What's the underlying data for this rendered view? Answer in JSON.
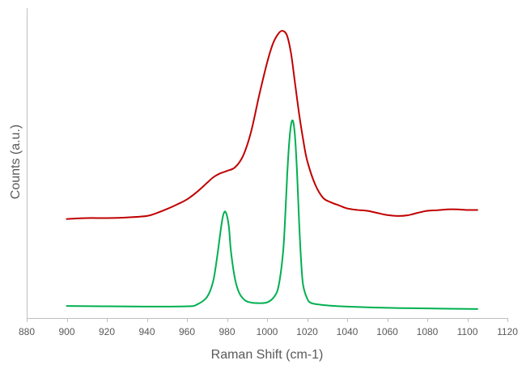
{
  "chart_data": {
    "type": "line",
    "title": "",
    "xlabel": "Raman Shift (cm-1)",
    "ylabel": "Counts (a.u.)",
    "xlim": [
      880,
      1120
    ],
    "ylim": [
      0,
      100
    ],
    "x_ticks": [
      880,
      900,
      920,
      940,
      960,
      980,
      1000,
      1020,
      1040,
      1060,
      1080,
      1100,
      1120
    ],
    "y_ticks_shown": false,
    "grid": false,
    "legend": "none",
    "series": [
      {
        "color": "#c00000",
        "x": [
          900,
          910,
          920,
          930,
          940,
          945,
          950,
          955,
          960,
          965,
          970,
          973,
          976,
          980,
          984,
          988,
          992,
          996,
          1000,
          1003,
          1006,
          1008,
          1010,
          1012,
          1014,
          1016,
          1018,
          1020,
          1024,
          1028,
          1032,
          1036,
          1040,
          1045,
          1050,
          1055,
          1060,
          1065,
          1070,
          1075,
          1080,
          1085,
          1090,
          1095,
          1100,
          1105
        ],
        "y": [
          33.0,
          33.3,
          33.3,
          33.5,
          34.0,
          35.0,
          36.3,
          37.8,
          39.5,
          42.0,
          45.0,
          46.8,
          48.0,
          49.0,
          50.2,
          54.0,
          62.0,
          74.0,
          85.0,
          91.5,
          95.0,
          95.6,
          94.0,
          88.0,
          78.0,
          68.0,
          59.5,
          52.5,
          44.5,
          40.0,
          38.5,
          37.5,
          36.5,
          36.0,
          35.7,
          35.0,
          34.3,
          34.0,
          34.2,
          35.0,
          35.7,
          35.9,
          36.2,
          36.2,
          36.0,
          36.0
        ]
      },
      {
        "color": "#00b050",
        "x": [
          900,
          920,
          940,
          960,
          965,
          970,
          973,
          975,
          977,
          978,
          979,
          980,
          981,
          982,
          984,
          986,
          988,
          990,
          994,
          1000,
          1004,
          1006,
          1008,
          1009,
          1010,
          1011,
          1012,
          1013,
          1014,
          1015,
          1016,
          1017,
          1018,
          1020,
          1022,
          1026,
          1030,
          1040,
          1060,
          1080,
          1105
        ],
        "y": [
          4.0,
          3.9,
          3.8,
          3.9,
          4.5,
          7.0,
          12.0,
          20.0,
          30.0,
          34.0,
          35.5,
          34.0,
          30.0,
          22.0,
          13.0,
          8.5,
          6.5,
          5.5,
          5.0,
          5.2,
          7.5,
          11.5,
          22.0,
          33.0,
          47.0,
          58.0,
          64.5,
          65.5,
          60.0,
          48.0,
          32.0,
          19.0,
          11.0,
          6.5,
          5.0,
          4.5,
          4.2,
          3.8,
          3.4,
          3.2,
          3.0
        ]
      }
    ]
  }
}
